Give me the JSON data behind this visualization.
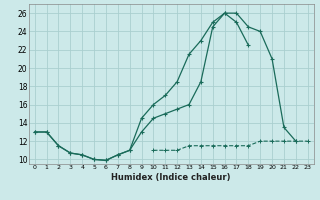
{
  "xlabel": "Humidex (Indice chaleur)",
  "ylabel": "",
  "xlim": [
    -0.5,
    23.5
  ],
  "ylim": [
    9.5,
    27
  ],
  "yticks": [
    10,
    12,
    14,
    16,
    18,
    20,
    22,
    24,
    26
  ],
  "xticks": [
    0,
    1,
    2,
    3,
    4,
    5,
    6,
    7,
    8,
    9,
    10,
    11,
    12,
    13,
    14,
    15,
    16,
    17,
    18,
    19,
    20,
    21,
    22,
    23
  ],
  "bg_color": "#cce9e9",
  "grid_color": "#aacfcf",
  "line_color": "#1a6b5a",
  "line1_y": [
    13.0,
    13.0,
    11.5,
    10.7,
    10.5,
    10.0,
    9.9,
    10.5,
    11.0,
    13.0,
    14.5,
    15.0,
    15.5,
    16.0,
    18.5,
    24.5,
    26.0,
    26.0,
    24.5,
    24.0,
    21.0,
    13.5,
    12.0,
    null
  ],
  "line2_y": [
    13.0,
    13.0,
    11.5,
    10.7,
    10.5,
    10.0,
    9.9,
    10.5,
    11.0,
    14.5,
    16.0,
    17.0,
    18.5,
    21.5,
    23.0,
    25.0,
    26.0,
    25.0,
    22.5,
    null,
    null,
    null,
    null,
    null
  ],
  "line3_y": [
    null,
    null,
    null,
    null,
    null,
    null,
    null,
    null,
    null,
    null,
    11.0,
    11.0,
    11.0,
    11.5,
    11.5,
    11.5,
    11.5,
    11.5,
    11.5,
    12.0,
    12.0,
    12.0,
    12.0,
    12.0
  ]
}
